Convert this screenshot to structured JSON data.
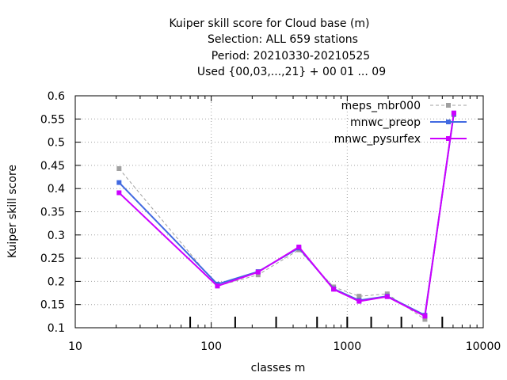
{
  "chart_data": {
    "type": "line",
    "title_lines": [
      "Kuiper skill score  for Cloud base (m)",
      "Selection: ALL    659 stations",
      "Period: 20210330-20210525",
      "Used {00,03,...,21} + 00 01 ... 09"
    ],
    "xlabel": "classes m",
    "ylabel": "Kuiper skill score",
    "x_scale": "log",
    "xlim": [
      10,
      10000
    ],
    "ylim": [
      0.1,
      0.6
    ],
    "x_ticks": [
      10,
      100,
      1000,
      10000
    ],
    "x_tick_labels": [
      "10",
      "100",
      "1000",
      "10000"
    ],
    "y_ticks": [
      0.1,
      0.15,
      0.2,
      0.25,
      0.3,
      0.35,
      0.4,
      0.45,
      0.5,
      0.55,
      0.6
    ],
    "y_tick_labels": [
      "0.1",
      "0.15",
      "0.2",
      "0.25",
      "0.3",
      "0.35",
      "0.4",
      "0.45",
      "0.5",
      "0.55",
      "0.6"
    ],
    "grid": true,
    "legend_position": "top-right",
    "class_limit_markers": [
      70,
      150,
      300,
      600,
      1000,
      1500,
      2500,
      5000
    ],
    "series": [
      {
        "name": "meps_mbr000",
        "color": "#a0a0a0",
        "dashed": true,
        "marker": "square",
        "x": [
          21,
          111,
          221,
          441,
          794,
          1223,
          1968,
          3727,
          6080
        ],
        "y": [
          0.443,
          0.19,
          0.214,
          0.268,
          0.188,
          0.168,
          0.173,
          0.118,
          0.559
        ]
      },
      {
        "name": "mnwc_preop",
        "color": "#4169e1",
        "dashed": false,
        "marker": "square",
        "x": [
          21,
          111,
          221,
          441,
          794,
          1223,
          1968,
          3727,
          6080
        ],
        "y": [
          0.413,
          0.194,
          0.221,
          0.272,
          0.184,
          0.159,
          0.168,
          0.127,
          0.561
        ]
      },
      {
        "name": "mnwc_pysurfex",
        "color": "#cc00ff",
        "dashed": false,
        "marker": "square",
        "x": [
          21,
          111,
          221,
          441,
          794,
          1223,
          1968,
          3727,
          6080
        ],
        "y": [
          0.391,
          0.19,
          0.22,
          0.274,
          0.183,
          0.157,
          0.167,
          0.125,
          0.563
        ]
      }
    ]
  }
}
